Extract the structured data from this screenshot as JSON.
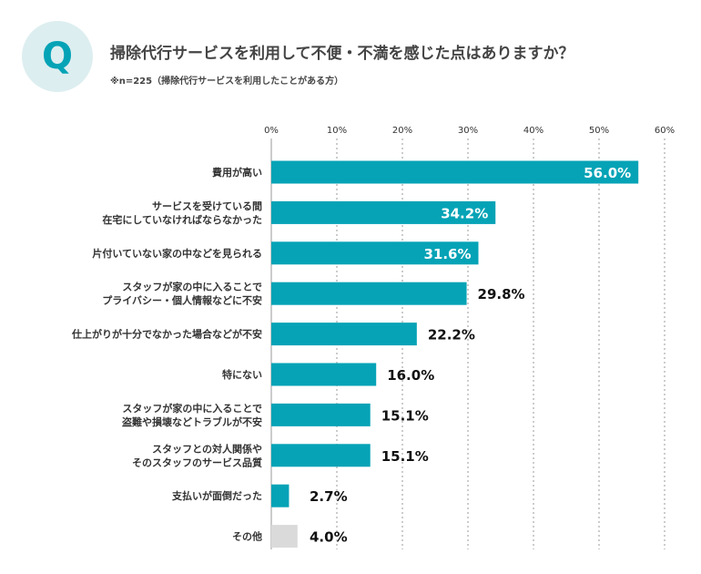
{
  "question": {
    "badge": "Q",
    "title": "掃除代行サービスを利用して不便・不満を感じた点はありますか？",
    "note": "※n=225（掃除代行サービスを利用したことがある方）"
  },
  "colors": {
    "bar": "#06a3b6",
    "bar_other": "#dadada",
    "badge_bg": "#ddeef0",
    "value_inside": "#ffffff",
    "value_outside": "#111111"
  },
  "chart_data": {
    "type": "bar",
    "orientation": "horizontal",
    "xlim": [
      0,
      60
    ],
    "ticks": [
      "0%",
      "10%",
      "20%",
      "30%",
      "40%",
      "50%",
      "60%"
    ],
    "tick_values": [
      0,
      10,
      20,
      30,
      40,
      50,
      60
    ],
    "grid": true,
    "categories": [
      [
        "費用が高い"
      ],
      [
        "サービスを受けている間",
        "在宅にしていなければならなかった"
      ],
      [
        "片付いていない家の中などを見られる"
      ],
      [
        "スタッフが家の中に入ることで",
        "プライバシー・個人情報などに不安"
      ],
      [
        "仕上がりが十分でなかった場合などが不安"
      ],
      [
        "特にない"
      ],
      [
        "スタッフが家の中に入ることで",
        "盗難や損壊などトラブルが不安"
      ],
      [
        "スタッフとの対人関係や",
        "そのスタッフのサービス品質"
      ],
      [
        "支払いが面倒だった"
      ],
      [
        "その他"
      ]
    ],
    "values": [
      56.0,
      34.2,
      31.6,
      29.8,
      22.2,
      16.0,
      15.1,
      15.1,
      2.7,
      4.0
    ],
    "labels": [
      "56.0%",
      "34.2%",
      "31.6%",
      "29.8%",
      "22.2%",
      "16.0%",
      "15.1%",
      "15.1%",
      "2.7%",
      "4.0%"
    ],
    "highlight_other_index": 9
  }
}
